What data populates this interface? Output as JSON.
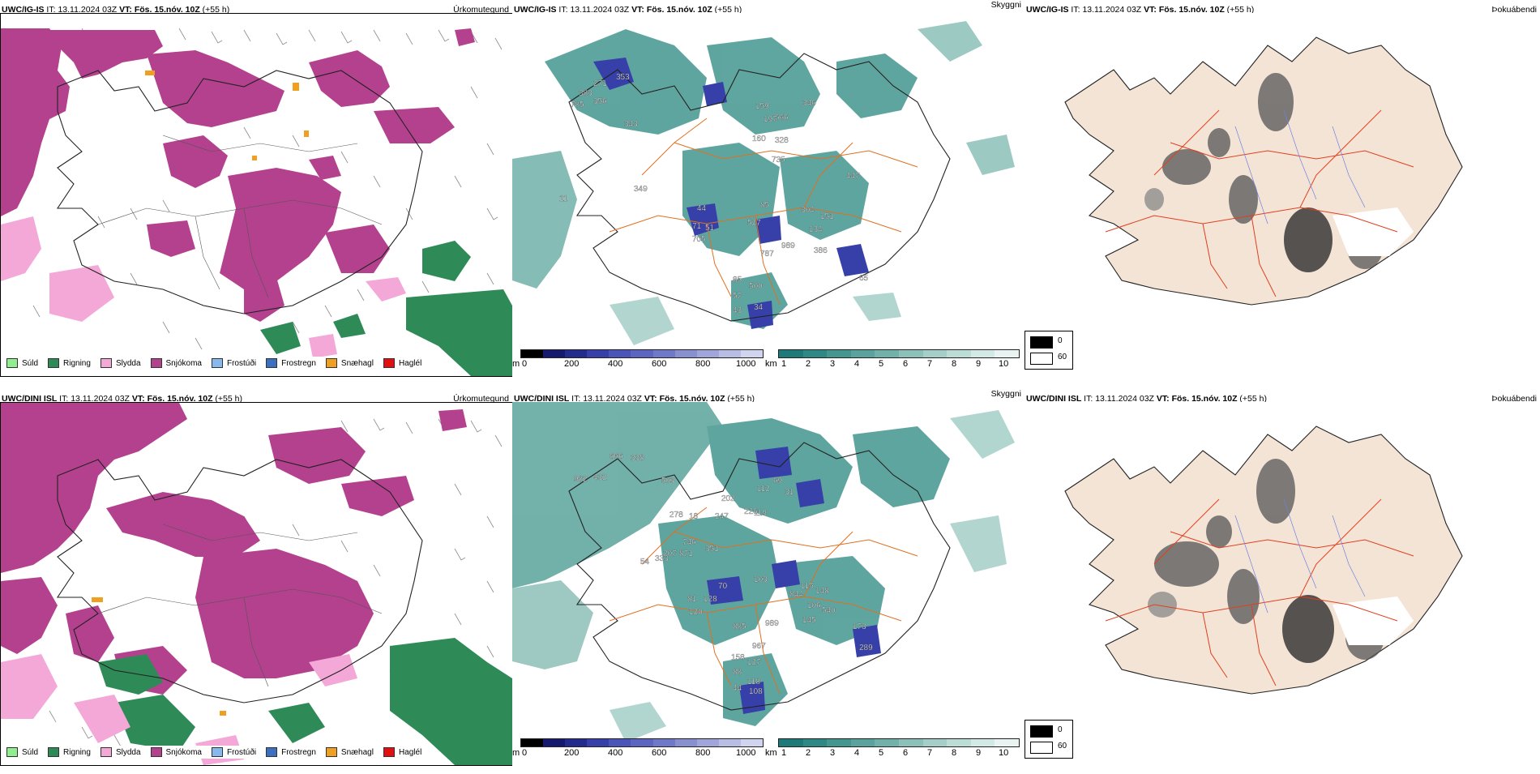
{
  "rows": [
    {
      "model": "UWC/IG-IS",
      "it_label": "IT:",
      "it_value": "13.11.2024 03Z",
      "vt_label": "VT:",
      "vt_value": "Fös. 15.nóv. 10Z",
      "lead": "(+55 h)"
    },
    {
      "model": "UWC/DINI ISL",
      "it_label": "IT:",
      "it_value": "13.11.2024 03Z",
      "vt_label": "VT:",
      "vt_value": "Fös. 15.nóv. 10Z",
      "lead": "(+55 h)"
    }
  ],
  "fields": {
    "precip": "Úrkomutegund",
    "cloud": "Skyggni",
    "fog": "Þokuábendi"
  },
  "precip_legend": [
    {
      "label": "Súld",
      "color": "#90ee90"
    },
    {
      "label": "Rigning",
      "color": "#2e8b57"
    },
    {
      "label": "Slydda",
      "color": "#f4a8d8"
    },
    {
      "label": "Snjókoma",
      "color": "#b4418e"
    },
    {
      "label": "Frostúði",
      "color": "#87b8ee"
    },
    {
      "label": "Frostregn",
      "color": "#3b6fc0"
    },
    {
      "label": "Snæhagl",
      "color": "#f0a020"
    },
    {
      "label": "Haglél",
      "color": "#e01010"
    }
  ],
  "ceiling_bar": {
    "unit": "m",
    "ticks": [
      "0",
      "200",
      "400",
      "600",
      "800",
      "1000"
    ],
    "colors": [
      "#000000",
      "#151a6e",
      "#232c8c",
      "#3640a8",
      "#4b55b8",
      "#5c66c0",
      "#7079c8",
      "#8890d0",
      "#a0a6da",
      "#b8bde4",
      "#d0d4ee"
    ]
  },
  "vis_bar": {
    "unit": "km",
    "ticks": [
      "1",
      "2",
      "3",
      "4",
      "5",
      "6",
      "7",
      "8",
      "9",
      "10"
    ],
    "colors": [
      "#1e7a78",
      "#2f8884",
      "#44968f",
      "#5aa39c",
      "#72b1aa",
      "#8cc0b8",
      "#a4cec7",
      "#bcdcd6",
      "#d3e9e5",
      "#e9f4f2"
    ]
  },
  "fog_legend": [
    {
      "label": "0",
      "color": "#000000"
    },
    {
      "label": "60",
      "color": "#ffffff"
    }
  ],
  "top_ceiling_labels": [
    "271",
    "383",
    "785",
    "356",
    "353",
    "343",
    "349",
    "11",
    "44",
    "71",
    "51",
    "705",
    "85",
    "527",
    "304",
    "151",
    "134",
    "989",
    "386",
    "787",
    "85",
    "500",
    "57",
    "43",
    "34",
    "65",
    "159",
    "666",
    "328",
    "735",
    "197",
    "346",
    "160",
    "447"
  ],
  "bottom_ceiling_labels": [
    "666",
    "338",
    "982",
    "432",
    "503",
    "202",
    "278",
    "18",
    "247",
    "226",
    "112",
    "69",
    "31",
    "119",
    "746",
    "351",
    "207",
    "871",
    "54",
    "333",
    "70",
    "81",
    "128",
    "120",
    "103",
    "115",
    "148",
    "844",
    "106",
    "540",
    "145",
    "173",
    "885",
    "989",
    "967",
    "158",
    "127",
    "88",
    "118",
    "44",
    "108",
    "289"
  ]
}
